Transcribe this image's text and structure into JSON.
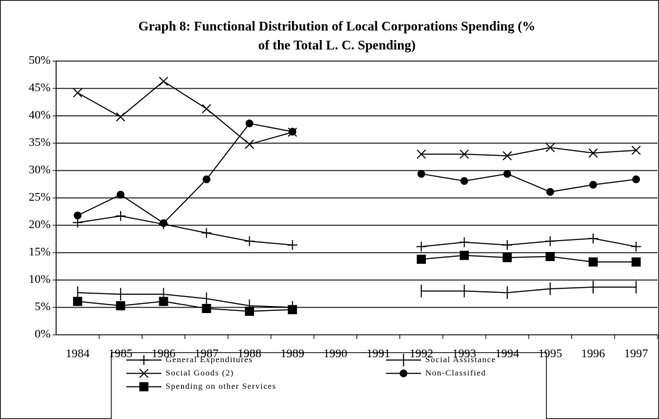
{
  "chart_data": {
    "type": "line",
    "title": [
      "Graph 8: Functional Distribution of Local Corporations Spending (%",
      "of the Total L. C. Spending)"
    ],
    "categories": [
      "1984",
      "1985",
      "1986",
      "1987",
      "1988",
      "1989",
      "1990",
      "1991",
      "1992",
      "1993",
      "1994",
      "1995",
      "1996",
      "1997"
    ],
    "series": [
      {
        "name": "General Expenditures",
        "color": "#000000",
        "marker": "plus",
        "values": [
          20.5,
          21.7,
          20.2,
          18.6,
          17.1,
          16.4,
          null,
          null,
          16.1,
          16.9,
          16.4,
          17.1,
          17.6,
          16.1
        ]
      },
      {
        "name": "Social Assistance",
        "color": "#000000",
        "marker": "tick",
        "values": [
          7.7,
          7.4,
          7.4,
          6.6,
          5.3,
          5.0,
          null,
          null,
          8.0,
          8.0,
          7.7,
          8.4,
          8.7,
          8.7
        ]
      },
      {
        "name": "Social Goods (2)",
        "color": "#000000",
        "marker": "x",
        "values": [
          44.2,
          39.8,
          46.3,
          41.3,
          34.8,
          37.0,
          null,
          null,
          33.0,
          33.0,
          32.7,
          34.2,
          33.2,
          33.7
        ]
      },
      {
        "name": "Non-Classified",
        "color": "#000000",
        "marker": "circle",
        "values": [
          21.8,
          25.6,
          20.4,
          28.4,
          38.6,
          37.1,
          null,
          null,
          29.4,
          28.1,
          29.4,
          26.1,
          27.4,
          28.4
        ]
      },
      {
        "name": "Spending on other Services",
        "color": "#000000",
        "marker": "square",
        "values": [
          6.1,
          5.3,
          6.1,
          4.8,
          4.3,
          4.6,
          null,
          null,
          13.8,
          14.5,
          14.1,
          14.3,
          13.3,
          13.3
        ]
      }
    ],
    "ylim": [
      0,
      50
    ],
    "yticks": [
      {
        "value": 0,
        "label": "0%"
      },
      {
        "value": 5,
        "label": "5%"
      },
      {
        "value": 10,
        "label": "10%"
      },
      {
        "value": 15,
        "label": "15%"
      },
      {
        "value": 20,
        "label": "20%"
      },
      {
        "value": 25,
        "label": "25%"
      },
      {
        "value": 30,
        "label": "30%"
      },
      {
        "value": 35,
        "label": "35%"
      },
      {
        "value": 40,
        "label": "40%"
      },
      {
        "value": 45,
        "label": "45%"
      },
      {
        "value": 50,
        "label": "50%"
      }
    ],
    "grid": true
  }
}
